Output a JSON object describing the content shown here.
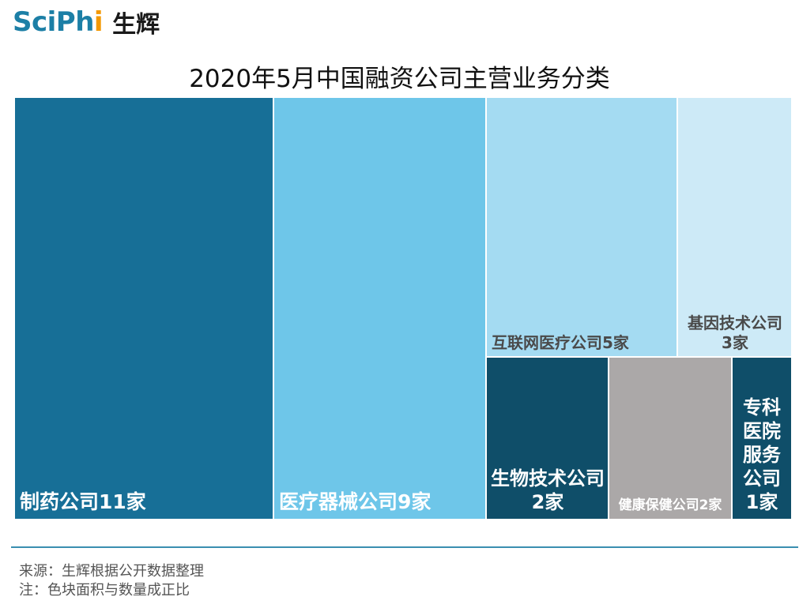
{
  "brand": {
    "sci": "SciPh",
    "i": "i",
    "cn": "生辉"
  },
  "chart_data": {
    "type": "treemap",
    "title": "2020年5月中国融资公司主营业务分类",
    "unit": "家",
    "items": [
      {
        "category": "制药公司",
        "value": 11,
        "label": "制药公司11家",
        "color": "#176f97"
      },
      {
        "category": "医疗器械公司",
        "value": 9,
        "label": "医疗器械公司9家",
        "color": "#6ec6e9"
      },
      {
        "category": "互联网医疗公司",
        "value": 5,
        "label": "互联网医疗公司5家",
        "color": "#a4dbf2"
      },
      {
        "category": "基因技术公司",
        "value": 3,
        "label": "基因技术公司3家",
        "color": "#cdeaf7"
      },
      {
        "category": "生物技术公司",
        "value": 2,
        "label": "生物技术公司2家",
        "color": "#0f4e69"
      },
      {
        "category": "健康保健公司",
        "value": 2,
        "label": "健康保健公司2家",
        "color": "#aba8a8"
      },
      {
        "category": "专科医院服务公司",
        "value": 1,
        "label": "专科医院服务公司1家",
        "color": "#0f4e69"
      }
    ]
  },
  "footer": {
    "source": "来源：生辉根据公开数据整理",
    "note": "注：色块面积与数量成正比"
  }
}
